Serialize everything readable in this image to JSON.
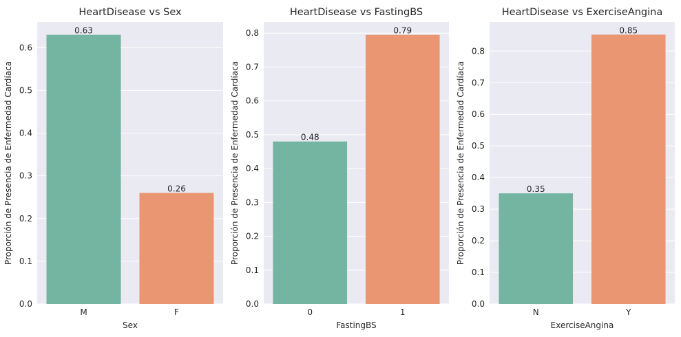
{
  "colors": {
    "bar1": "#73b5a0",
    "bar2": "#ea9673",
    "plot_bg": "#eaeaf2",
    "grid": "#ffffff",
    "text": "#262626"
  },
  "chart_data": [
    {
      "type": "bar",
      "title": "HeartDisease vs Sex",
      "xlabel": "Sex",
      "ylabel": "Proporción de Presencia de Enfermedad Cardíaca",
      "categories": [
        "M",
        "F"
      ],
      "values": [
        0.63,
        0.26
      ],
      "data_labels": [
        "0.63",
        "0.26"
      ],
      "ylim": [
        0,
        0.66
      ],
      "yticks": [
        0.0,
        0.1,
        0.2,
        0.3,
        0.4,
        0.5,
        0.6
      ],
      "ytick_labels": [
        "0.0",
        "0.1",
        "0.2",
        "0.3",
        "0.4",
        "0.5",
        "0.6"
      ],
      "grid": true
    },
    {
      "type": "bar",
      "title": "HeartDisease vs FastingBS",
      "xlabel": "FastingBS",
      "ylabel": "Proporción de Presencia de Enfermedad Cardíaca",
      "categories": [
        "0",
        "1"
      ],
      "values": [
        0.48,
        0.795
      ],
      "data_labels": [
        "0.48",
        "0.79"
      ],
      "ylim": [
        0,
        0.833
      ],
      "yticks": [
        0.0,
        0.1,
        0.2,
        0.3,
        0.4,
        0.5,
        0.6,
        0.7,
        0.8
      ],
      "ytick_labels": [
        "0.0",
        "0.1",
        "0.2",
        "0.3",
        "0.4",
        "0.5",
        "0.6",
        "0.7",
        "0.8"
      ],
      "grid": true
    },
    {
      "type": "bar",
      "title": "HeartDisease vs ExerciseAngina",
      "xlabel": "ExerciseAngina",
      "ylabel": "Proporción de Presencia de Enfermedad Cardíaca",
      "categories": [
        "N",
        "Y"
      ],
      "values": [
        0.35,
        0.852
      ],
      "data_labels": [
        "0.35",
        "0.85"
      ],
      "ylim": [
        0,
        0.892
      ],
      "yticks": [
        0.0,
        0.1,
        0.2,
        0.3,
        0.4,
        0.5,
        0.6,
        0.7,
        0.8
      ],
      "ytick_labels": [
        "0.0",
        "0.1",
        "0.2",
        "0.3",
        "0.4",
        "0.5",
        "0.6",
        "0.7",
        "0.8"
      ],
      "grid": true
    }
  ]
}
